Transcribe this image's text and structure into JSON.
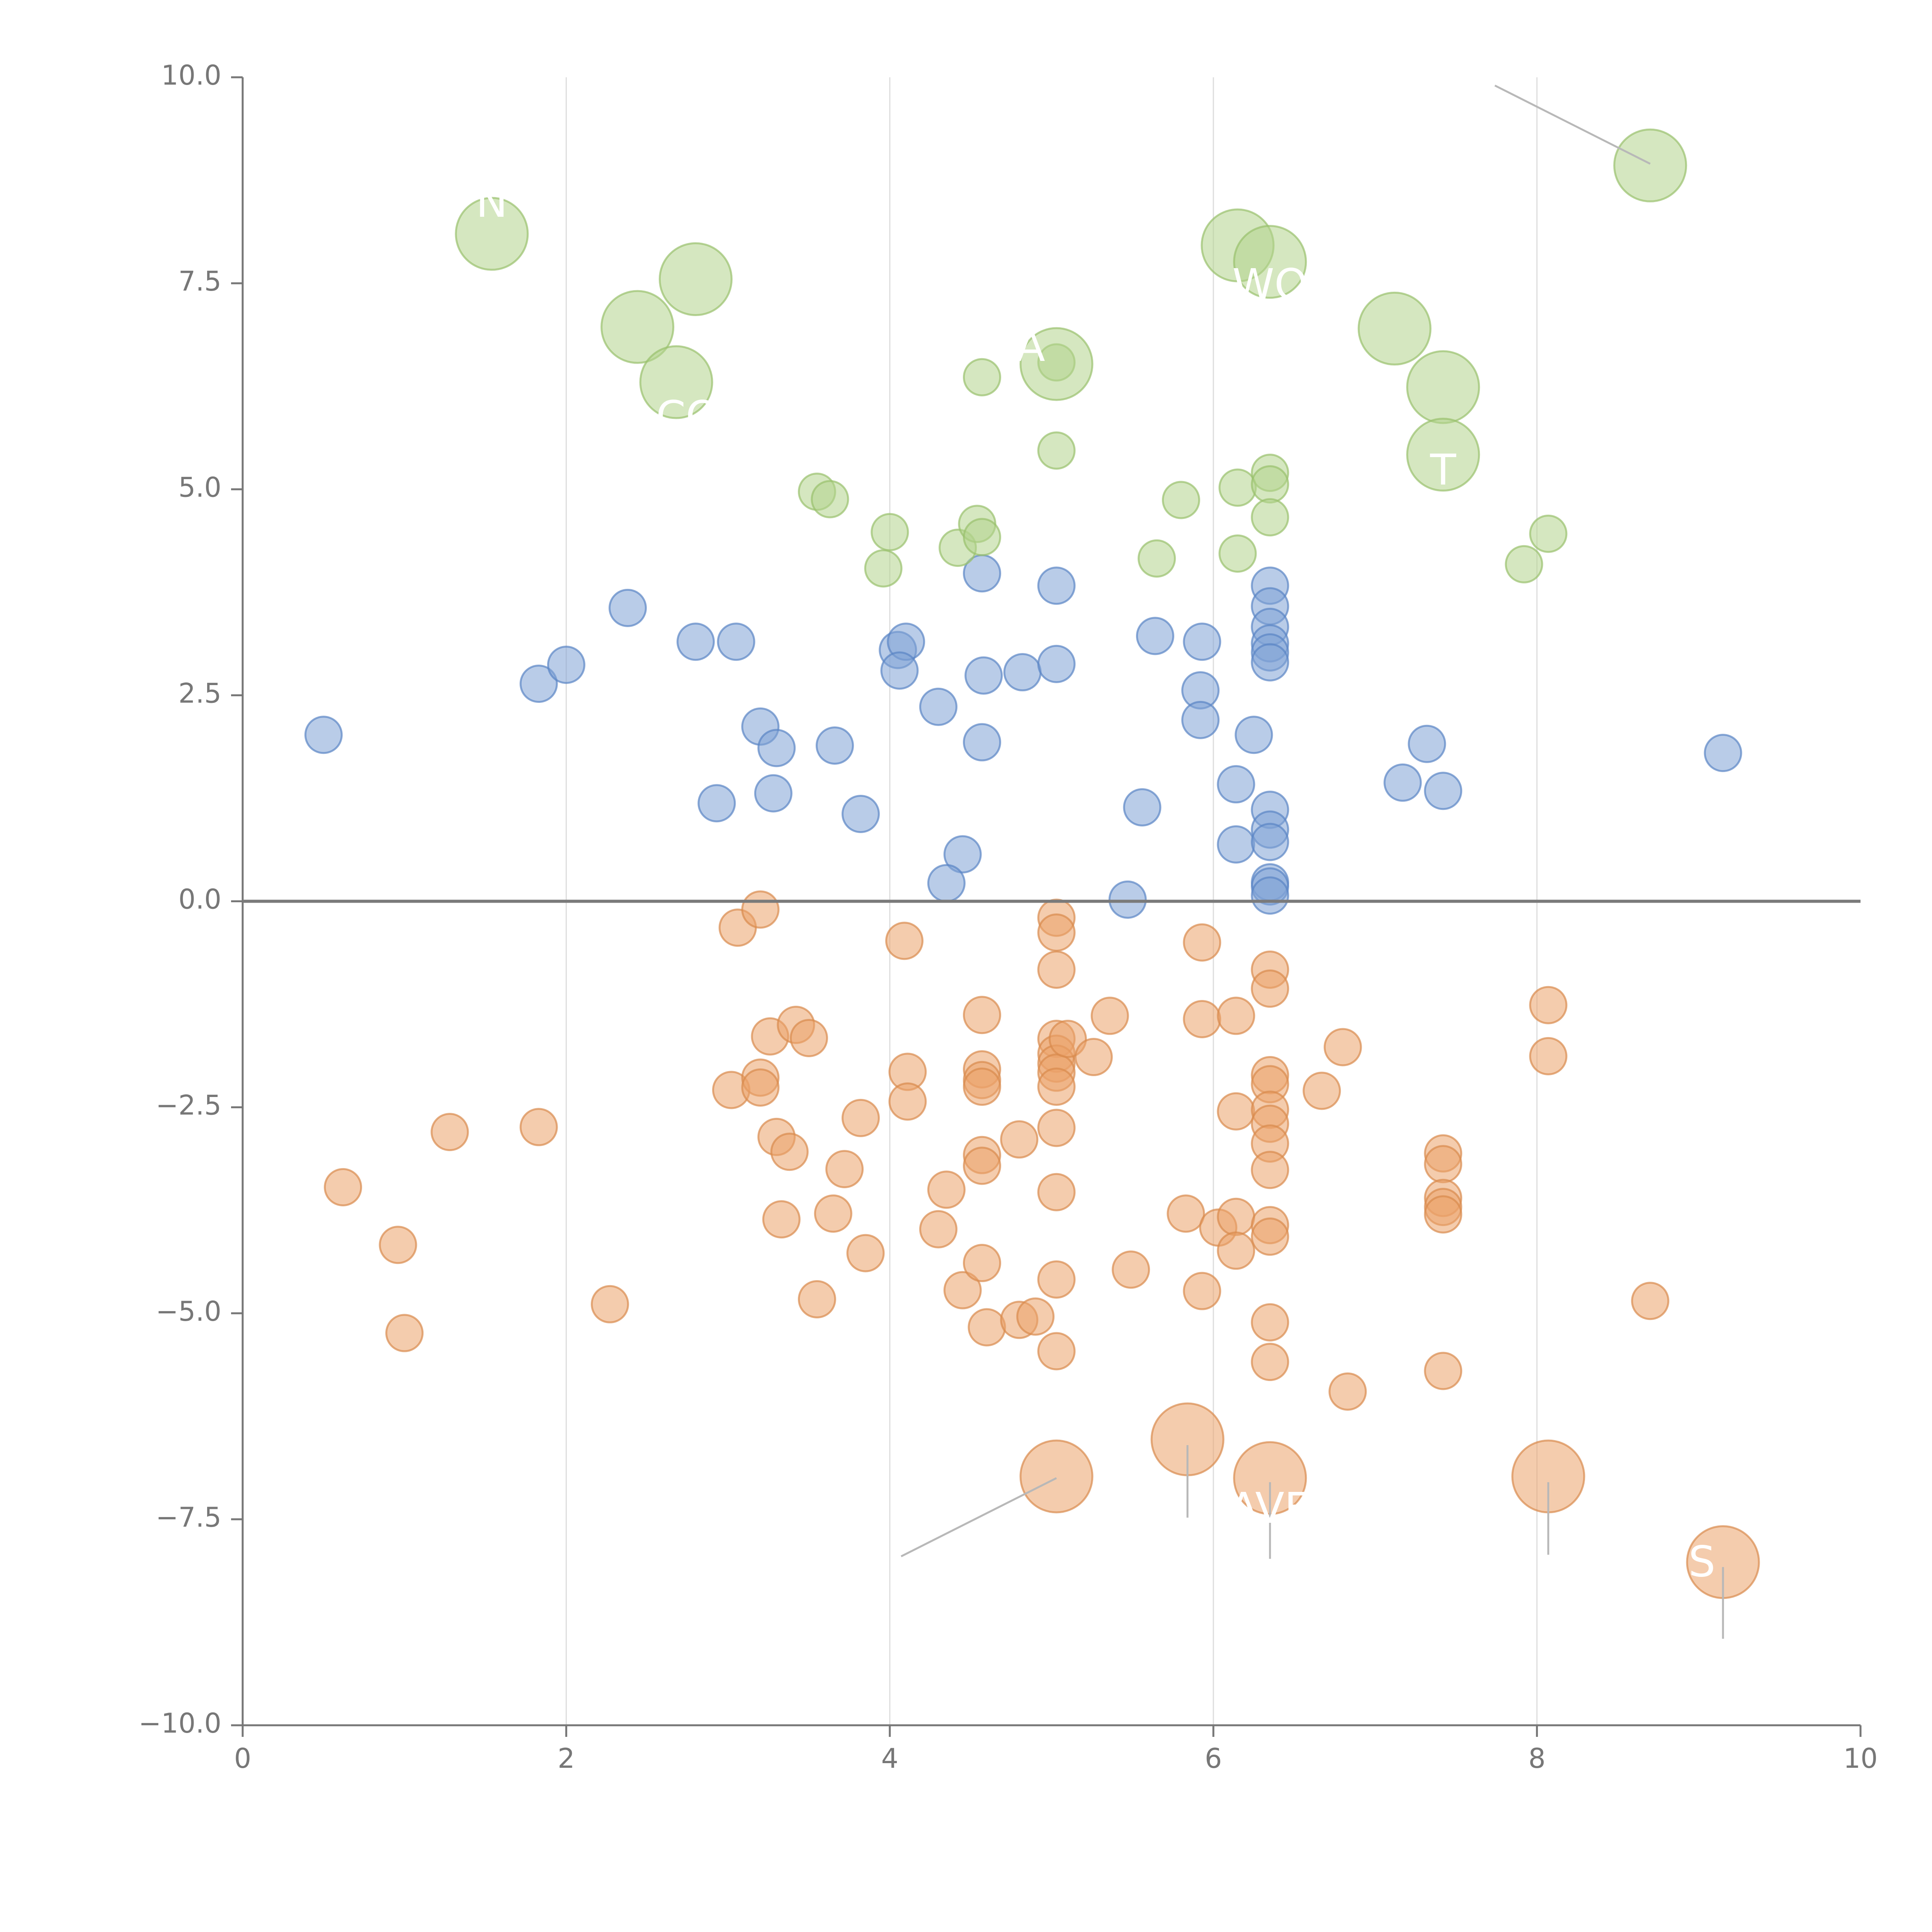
{
  "chart_data": {
    "type": "scatter",
    "title": "",
    "xlabel": "",
    "ylabel": "",
    "xlim": [
      0,
      10
    ],
    "ylim": [
      -10,
      10
    ],
    "x_ticks": [
      "0",
      "2",
      "4",
      "6",
      "8",
      "10"
    ],
    "y_ticks": [
      "10.0",
      "7.5",
      "5.0",
      "2.5",
      "0.0",
      "−2.5",
      "−5.0",
      "−7.5",
      "−10.0"
    ],
    "x_tick_values": [
      0,
      2,
      4,
      6,
      8,
      10
    ],
    "y_tick_values": [
      10,
      7.5,
      5,
      2.5,
      0,
      -2.5,
      -5,
      -7.5,
      -10
    ],
    "vertical_grid": [
      2,
      4,
      6,
      8
    ],
    "zero_line": 0,
    "colors": {
      "blue": "#7fa3d6",
      "blue_stroke": "#5a85c4",
      "orange": "#eba36a",
      "orange_stroke": "#d98a4d",
      "green": "#b3d38c",
      "green_stroke": "#98c06c",
      "axis": "#777777",
      "grid": "#dddddd",
      "zero": "#7a7a7a",
      "leader": "#b8b8b8"
    },
    "series": [
      {
        "name": "blue",
        "values": [
          [
            0.5,
            2.02
          ],
          [
            1.83,
            2.64
          ],
          [
            2.0,
            2.87
          ],
          [
            2.38,
            3.56
          ],
          [
            2.8,
            3.15
          ],
          [
            3.05,
            3.15
          ],
          [
            2.93,
            1.19
          ],
          [
            3.2,
            2.12
          ],
          [
            3.3,
            1.86
          ],
          [
            3.28,
            1.31
          ],
          [
            3.66,
            1.89
          ],
          [
            3.82,
            1.06
          ],
          [
            4.05,
            3.05
          ],
          [
            4.1,
            3.15
          ],
          [
            4.06,
            2.8
          ],
          [
            4.3,
            2.36
          ],
          [
            4.45,
            0.57
          ],
          [
            4.35,
            0.22
          ],
          [
            4.57,
            3.98
          ],
          [
            4.58,
            2.74
          ],
          [
            4.57,
            1.93
          ],
          [
            4.82,
            2.78
          ],
          [
            5.03,
            3.83
          ],
          [
            5.03,
            2.88
          ],
          [
            5.47,
            0.02
          ],
          [
            5.56,
            1.14
          ],
          [
            5.64,
            3.22
          ],
          [
            5.93,
            3.15
          ],
          [
            5.92,
            2.56
          ],
          [
            5.92,
            2.2
          ],
          [
            6.25,
            2.02
          ],
          [
            6.14,
            1.42
          ],
          [
            6.14,
            0.69
          ],
          [
            6.35,
            3.83
          ],
          [
            6.35,
            3.58
          ],
          [
            6.35,
            3.33
          ],
          [
            6.35,
            3.13
          ],
          [
            6.35,
            3.02
          ],
          [
            6.35,
            2.9
          ],
          [
            6.35,
            1.11
          ],
          [
            6.35,
            0.87
          ],
          [
            6.35,
            0.72
          ],
          [
            6.35,
            0.23
          ],
          [
            6.35,
            0.18
          ],
          [
            6.35,
            0.07
          ],
          [
            7.17,
            1.44
          ],
          [
            7.32,
            1.91
          ],
          [
            7.42,
            1.34
          ],
          [
            9.15,
            1.8
          ]
        ]
      },
      {
        "name": "orange",
        "values": [
          [
            0.62,
            -3.47
          ],
          [
            0.96,
            -4.17
          ],
          [
            1.0,
            -5.24
          ],
          [
            1.28,
            -2.8
          ],
          [
            1.83,
            -2.74
          ],
          [
            2.27,
            -4.89
          ],
          [
            3.06,
            -0.32
          ],
          [
            3.2,
            -0.1
          ],
          [
            3.02,
            -2.29
          ],
          [
            3.2,
            -2.14
          ],
          [
            3.2,
            -2.26
          ],
          [
            3.26,
            -1.64
          ],
          [
            3.42,
            -1.5
          ],
          [
            3.5,
            -1.66
          ],
          [
            3.3,
            -2.86
          ],
          [
            3.38,
            -3.04
          ],
          [
            3.33,
            -3.86
          ],
          [
            3.55,
            -4.83
          ],
          [
            3.65,
            -3.79
          ],
          [
            3.72,
            -3.25
          ],
          [
            3.82,
            -2.63
          ],
          [
            3.85,
            -4.27
          ],
          [
            4.09,
            -0.48
          ],
          [
            4.11,
            -2.07
          ],
          [
            4.11,
            -2.43
          ],
          [
            4.3,
            -3.98
          ],
          [
            4.35,
            -3.5
          ],
          [
            4.45,
            -4.72
          ],
          [
            4.57,
            -1.38
          ],
          [
            4.57,
            -2.04
          ],
          [
            4.57,
            -2.17
          ],
          [
            4.57,
            -2.25
          ],
          [
            4.57,
            -3.08
          ],
          [
            4.57,
            -3.21
          ],
          [
            4.57,
            -4.39
          ],
          [
            4.6,
            -5.17
          ],
          [
            4.8,
            -2.89
          ],
          [
            4.8,
            -5.08
          ],
          [
            4.9,
            -5.04
          ],
          [
            5.03,
            -0.2
          ],
          [
            5.03,
            -0.38
          ],
          [
            5.03,
            -0.83
          ],
          [
            5.03,
            -1.67
          ],
          [
            5.03,
            -1.85
          ],
          [
            5.03,
            -1.97
          ],
          [
            5.03,
            -2.08
          ],
          [
            5.03,
            -2.25
          ],
          [
            5.03,
            -2.75
          ],
          [
            5.03,
            -3.53
          ],
          [
            5.03,
            -4.59
          ],
          [
            5.03,
            -5.46
          ],
          [
            5.1,
            -1.67
          ],
          [
            5.26,
            -1.89
          ],
          [
            5.36,
            -1.39
          ],
          [
            5.49,
            -4.47
          ],
          [
            5.83,
            -3.79
          ],
          [
            5.93,
            -0.5
          ],
          [
            5.93,
            -1.43
          ],
          [
            5.93,
            -4.73
          ],
          [
            6.03,
            -3.96
          ],
          [
            6.14,
            -1.39
          ],
          [
            6.14,
            -2.55
          ],
          [
            6.14,
            -3.83
          ],
          [
            6.14,
            -4.24
          ],
          [
            6.35,
            -0.83
          ],
          [
            6.35,
            -1.06
          ],
          [
            6.35,
            -2.11
          ],
          [
            6.35,
            -2.22
          ],
          [
            6.35,
            -2.53
          ],
          [
            6.35,
            -2.7
          ],
          [
            6.35,
            -2.94
          ],
          [
            6.35,
            -3.26
          ],
          [
            6.35,
            -3.93
          ],
          [
            6.35,
            -4.07
          ],
          [
            6.35,
            -5.11
          ],
          [
            6.35,
            -5.59
          ],
          [
            6.67,
            -2.3
          ],
          [
            6.8,
            -1.77
          ],
          [
            6.83,
            -5.95
          ],
          [
            7.42,
            -3.06
          ],
          [
            7.42,
            -3.19
          ],
          [
            7.42,
            -3.6
          ],
          [
            7.42,
            -3.71
          ],
          [
            7.42,
            -3.8
          ],
          [
            7.42,
            -5.7
          ],
          [
            8.07,
            -1.26
          ],
          [
            8.07,
            -1.88
          ],
          [
            8.7,
            -4.85
          ]
        ]
      },
      {
        "name": "green",
        "values": [
          [
            3.55,
            4.97
          ],
          [
            3.63,
            4.88
          ],
          [
            3.96,
            4.04
          ],
          [
            4.0,
            4.48
          ],
          [
            4.42,
            4.29
          ],
          [
            4.54,
            4.58
          ],
          [
            4.57,
            4.42
          ],
          [
            4.57,
            6.36
          ],
          [
            5.03,
            6.54
          ],
          [
            5.03,
            5.47
          ],
          [
            5.65,
            4.16
          ],
          [
            5.8,
            4.87
          ],
          [
            6.15,
            5.02
          ],
          [
            6.15,
            4.22
          ],
          [
            6.35,
            5.2
          ],
          [
            6.35,
            5.06
          ],
          [
            6.35,
            4.66
          ],
          [
            7.92,
            4.09
          ],
          [
            8.07,
            4.46
          ]
        ]
      }
    ],
    "highlighted": [
      {
        "group": "green",
        "x": 1.54,
        "y": 8.1
      },
      {
        "group": "green",
        "x": 2.44,
        "y": 6.97
      },
      {
        "group": "green",
        "x": 2.8,
        "y": 7.55
      },
      {
        "group": "green",
        "x": 2.68,
        "y": 6.3
      },
      {
        "group": "green",
        "x": 5.03,
        "y": 6.52
      },
      {
        "group": "green",
        "x": 6.15,
        "y": 7.96
      },
      {
        "group": "green",
        "x": 6.35,
        "y": 7.76
      },
      {
        "group": "green",
        "x": 7.12,
        "y": 6.95
      },
      {
        "group": "green",
        "x": 7.42,
        "y": 6.24
      },
      {
        "group": "green",
        "x": 7.42,
        "y": 5.42
      },
      {
        "group": "green",
        "x": 8.7,
        "y": 8.93
      },
      {
        "group": "orange",
        "x": 5.03,
        "y": -6.98
      },
      {
        "group": "orange",
        "x": 5.84,
        "y": -6.53
      },
      {
        "group": "orange",
        "x": 6.35,
        "y": -7.0
      },
      {
        "group": "orange",
        "x": 8.07,
        "y": -6.98
      },
      {
        "group": "orange",
        "x": 9.15,
        "y": -8.02
      }
    ],
    "annotations": [
      {
        "text": "N",
        "x": 1.54,
        "y": 8.45,
        "color": "#ffffff"
      },
      {
        "text": "WO",
        "x": 6.35,
        "y": 7.45,
        "color": "#ffffff"
      },
      {
        "text": "A",
        "x": 4.87,
        "y": 6.7,
        "color": "#ffffff"
      },
      {
        "text": "CO",
        "x": 2.75,
        "y": 5.85,
        "color": "#ffffff"
      },
      {
        "text": "T",
        "x": 7.42,
        "y": 5.2,
        "color": "#ffffff"
      },
      {
        "text": "AVE",
        "x": 6.35,
        "y": -7.4,
        "color": "#ffffff"
      },
      {
        "text": "S",
        "x": 9.02,
        "y": -8.05,
        "color": "#ffffff"
      }
    ],
    "leader_lines": [
      {
        "x1": 7.74,
        "y1": 9.9,
        "x2": 8.7,
        "y2": 8.95
      },
      {
        "x1": 4.07,
        "y1": -7.95,
        "x2": 5.03,
        "y2": -7.0
      },
      {
        "x1": 5.84,
        "y1": -6.6,
        "x2": 5.84,
        "y2": -7.48
      },
      {
        "x1": 6.35,
        "y1": -7.05,
        "x2": 6.35,
        "y2": -7.98
      },
      {
        "x1": 8.07,
        "y1": -7.05,
        "x2": 8.07,
        "y2": -7.93
      },
      {
        "x1": 9.15,
        "y1": -8.08,
        "x2": 9.15,
        "y2": -8.95
      }
    ]
  }
}
